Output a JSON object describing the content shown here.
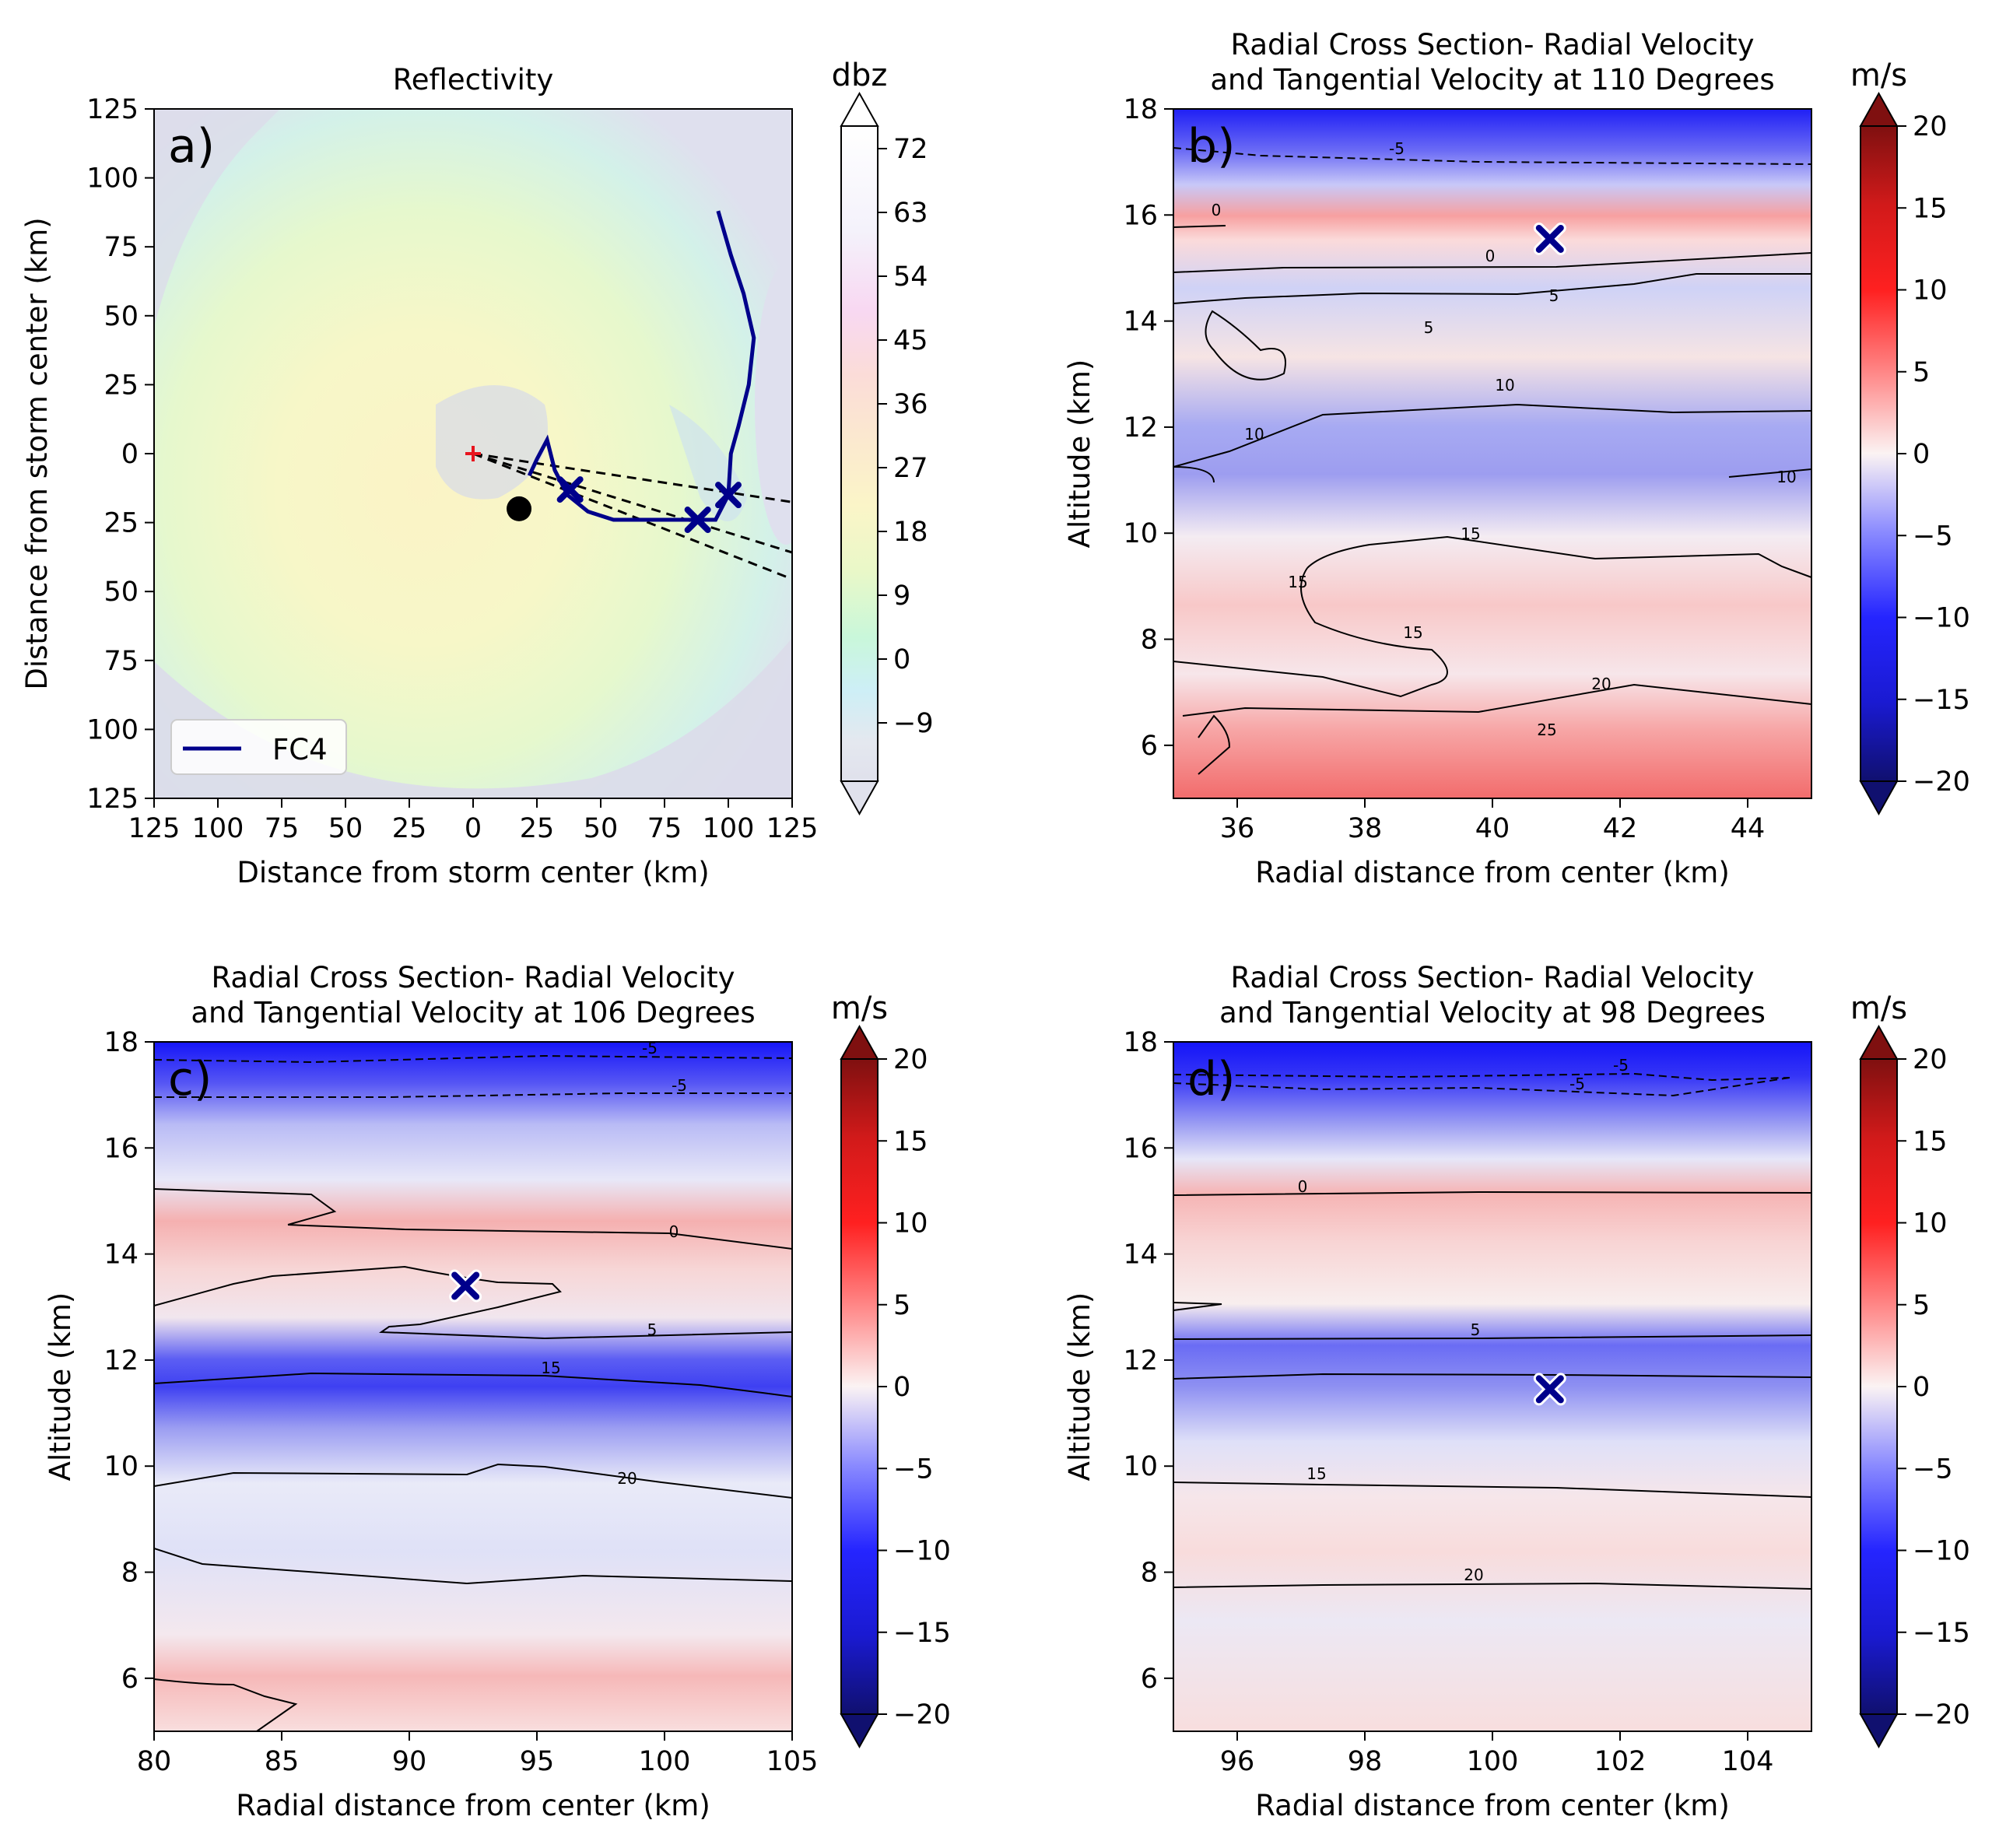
{
  "charts": [
    {
      "panel_label": "a)",
      "title_lines": [
        "Reflectivity"
      ],
      "xlabel": "Distance from storm center (km)",
      "ylabel": "Distance from storm center (km)",
      "colorbar_label": "dbz",
      "x_ticks": [
        "125",
        "100",
        "75",
        "50",
        "25",
        "0",
        "25",
        "50",
        "75",
        "100",
        "125"
      ],
      "y_ticks": [
        "125",
        "100",
        "75",
        "50",
        "25",
        "0",
        "25",
        "50",
        "75",
        "100",
        "125"
      ],
      "colorbar_ticks": [
        "72",
        "63",
        "54",
        "45",
        "36",
        "27",
        "18",
        "9",
        "0",
        "−9"
      ],
      "legend": "FC4"
    },
    {
      "panel_label": "b)",
      "title_lines": [
        "Radial Cross Section- Radial Velocity",
        "and Tangential Velocity at 110 Degrees"
      ],
      "xlabel": "Radial distance from center (km)",
      "ylabel": "Altitude (km)",
      "colorbar_label": "m/s",
      "x_ticks": [
        "36",
        "38",
        "40",
        "42",
        "44"
      ],
      "y_ticks": [
        "18",
        "16",
        "14",
        "12",
        "10",
        "8",
        "6"
      ],
      "colorbar_ticks": [
        "20",
        "15",
        "10",
        "5",
        "0",
        "−5",
        "−10",
        "−15",
        "−20"
      ]
    },
    {
      "panel_label": "c)",
      "title_lines": [
        "Radial Cross Section- Radial Velocity",
        "and Tangential Velocity at 106 Degrees"
      ],
      "xlabel": "Radial distance from center (km)",
      "ylabel": "Altitude (km)",
      "colorbar_label": "m/s",
      "x_ticks": [
        "80",
        "85",
        "90",
        "95",
        "100",
        "105"
      ],
      "y_ticks": [
        "18",
        "16",
        "14",
        "12",
        "10",
        "8",
        "6"
      ],
      "colorbar_ticks": [
        "20",
        "15",
        "10",
        "5",
        "0",
        "−5",
        "−10",
        "−15",
        "−20"
      ]
    },
    {
      "panel_label": "d)",
      "title_lines": [
        "Radial Cross Section- Radial Velocity",
        "and Tangential Velocity at 98 Degrees"
      ],
      "xlabel": "Radial distance from center (km)",
      "ylabel": "Altitude (km)",
      "colorbar_label": "m/s",
      "x_ticks": [
        "96",
        "98",
        "100",
        "102",
        "104"
      ],
      "y_ticks": [
        "18",
        "16",
        "14",
        "12",
        "10",
        "8",
        "6"
      ],
      "colorbar_ticks": [
        "20",
        "15",
        "10",
        "5",
        "0",
        "−5",
        "−10",
        "−15",
        "−20"
      ]
    }
  ],
  "chart_data": [
    {
      "type": "heatmap",
      "title": "Reflectivity",
      "xlabel": "Distance from storm center (km)",
      "ylabel": "Distance from storm center (km)",
      "xlim": [
        -125,
        125
      ],
      "ylim": [
        -125,
        125
      ],
      "colorbar": {
        "label": "dbz",
        "ticks": [
          72,
          63,
          54,
          45,
          36,
          27,
          18,
          9,
          0,
          -9
        ],
        "extend": "both"
      },
      "storm_center": [
        0,
        0
      ],
      "black_dot": [
        18,
        -20
      ],
      "flight_track": {
        "name": "FC4",
        "color": "#00008b",
        "points": [
          [
            96,
            88
          ],
          [
            101,
            72
          ],
          [
            106,
            58
          ],
          [
            110,
            42
          ],
          [
            108,
            25
          ],
          [
            104,
            10
          ],
          [
            101,
            0
          ],
          [
            100,
            -15
          ],
          [
            95,
            -24
          ],
          [
            75,
            -24
          ],
          [
            55,
            -24
          ],
          [
            45,
            -21
          ],
          [
            37,
            -15
          ],
          [
            32,
            -6
          ],
          [
            29,
            5
          ],
          [
            25,
            -2
          ],
          [
            22,
            -8
          ]
        ]
      },
      "cross_markers": [
        [
          38,
          -13
        ],
        [
          88,
          -24
        ],
        [
          100,
          -15
        ]
      ],
      "radial_lines_deg": [
        98,
        106,
        110
      ]
    },
    {
      "type": "heatmap",
      "title": "Radial Cross Section- Radial Velocity and Tangential Velocity at 110 Degrees",
      "xlabel": "Radial distance from center (km)",
      "ylabel": "Altitude (km)",
      "xlim": [
        35,
        45
      ],
      "ylim": [
        5,
        18
      ],
      "colorbar": {
        "label": "m/s",
        "ticks": [
          20,
          15,
          10,
          5,
          0,
          -5,
          -10,
          -15,
          -20
        ],
        "extend": "both"
      },
      "marker": [
        40.9,
        15.55
      ],
      "contour_labels": [
        "-5",
        "0",
        "0",
        "5",
        "5",
        "10",
        "10",
        "10",
        "15",
        "15",
        "15",
        "20",
        "25"
      ]
    },
    {
      "type": "heatmap",
      "title": "Radial Cross Section- Radial Velocity and Tangential Velocity at 106 Degrees",
      "xlabel": "Radial distance from center (km)",
      "ylabel": "Altitude (km)",
      "xlim": [
        80,
        105
      ],
      "ylim": [
        5,
        18
      ],
      "colorbar": {
        "label": "m/s",
        "ticks": [
          20,
          15,
          10,
          5,
          0,
          -5,
          -10,
          -15,
          -20
        ],
        "extend": "both"
      },
      "marker": [
        92.2,
        13.4
      ],
      "contour_labels": [
        "-5",
        "-5",
        "0",
        "5",
        "15",
        "20"
      ]
    },
    {
      "type": "heatmap",
      "title": "Radial Cross Section- Radial Velocity and Tangential Velocity at 98 Degrees",
      "xlabel": "Radial distance from center (km)",
      "ylabel": "Altitude (km)",
      "xlim": [
        95,
        105
      ],
      "ylim": [
        5,
        18
      ],
      "colorbar": {
        "label": "m/s",
        "ticks": [
          20,
          15,
          10,
          5,
          0,
          -5,
          -10,
          -15,
          -20
        ],
        "extend": "both"
      },
      "marker": [
        100.9,
        11.45
      ],
      "contour_labels": [
        "-5",
        "-5",
        "0",
        "5",
        "15",
        "20"
      ]
    }
  ]
}
